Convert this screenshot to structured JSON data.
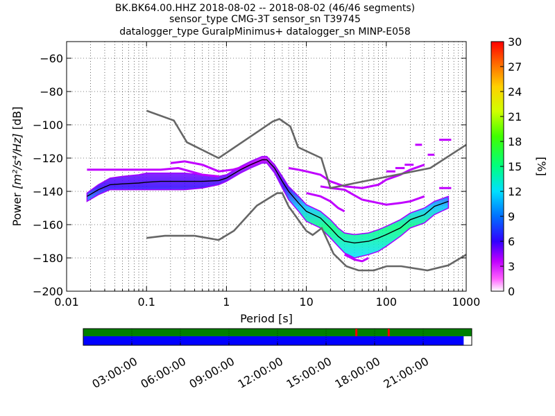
{
  "title_lines": [
    "BK.BK64.00.HHZ   2018-08-02 -- 2018-08-02  (46/46 segments)",
    "sensor_type CMG-3T sensor_sn T39745",
    "datalogger_type GuralpMinimus+ datalogger_sn MINP-E058"
  ],
  "chart_data": [
    {
      "type": "heatmap",
      "title": "BK.BK64.00.HHZ   2018-08-02 -- 2018-08-02  (46/46 segments)",
      "xlabel": "Period [s]",
      "ylabel": "Power [m²/s⁴/Hz] [dB]",
      "ylabel_prefix": "Power ",
      "ylabel_units": "[m²/s⁴/Hz]",
      "ylabel_suffix": " [dB]",
      "xscale": "log",
      "xlim": [
        0.01,
        1000
      ],
      "ylim": [
        -200,
        -50
      ],
      "xtick_values": [
        0.01,
        0.1,
        1,
        10,
        100,
        1000
      ],
      "xtick_labels": [
        "0.01",
        "0.1",
        "1",
        "10",
        "100",
        "1000"
      ],
      "ytick_values": [
        -200,
        -180,
        -160,
        -140,
        -120,
        -100,
        -80,
        -60
      ],
      "ytick_labels": [
        "−200",
        "−180",
        "−160",
        "−140",
        "−120",
        "−100",
        "−80",
        "−60"
      ],
      "grid": "dotted",
      "colorbar": {
        "label": "[%]",
        "range": [
          0,
          30
        ],
        "tick_values": [
          0,
          3,
          6,
          9,
          12,
          15,
          18,
          21,
          24,
          27,
          30
        ],
        "tick_labels": [
          "0",
          "3",
          "6",
          "9",
          "12",
          "15",
          "18",
          "21",
          "24",
          "27",
          "30"
        ]
      },
      "model_curves": [
        {
          "name": "high noise model",
          "color": "#666666",
          "x": [
            0.1,
            0.22,
            0.32,
            0.8,
            3.8,
            4.6,
            6.3,
            7.9,
            15.4,
            20,
            354.8,
            1000
          ],
          "y": [
            -91.5,
            -97.4,
            -110.5,
            -120,
            -98,
            -96.5,
            -101,
            -113.5,
            -120,
            -138,
            -126,
            -112
          ]
        },
        {
          "name": "low noise model",
          "color": "#666666",
          "x": [
            0.1,
            0.17,
            0.4,
            0.8,
            1.24,
            2.4,
            4.3,
            5,
            6,
            10,
            12,
            15.6,
            21.9,
            31.6,
            45,
            70,
            101,
            154,
            328,
            600,
            1000
          ],
          "y": [
            -168,
            -166.7,
            -166.7,
            -169.2,
            -163.7,
            -148.6,
            -141.1,
            -141.1,
            -149,
            -163.8,
            -166.2,
            -162.1,
            -177.5,
            -185,
            -187.5,
            -187.5,
            -185,
            -185,
            -187.5,
            -184.4,
            -178
          ]
        }
      ],
      "mean_curve": {
        "color": "#000000",
        "x": [
          0.018,
          0.025,
          0.035,
          0.05,
          0.08,
          0.1,
          0.15,
          0.2,
          0.3,
          0.5,
          0.8,
          1,
          1.5,
          2,
          2.8,
          3.2,
          4,
          5,
          6,
          8,
          10,
          15,
          20,
          25,
          30,
          40,
          60,
          80,
          100,
          150,
          200,
          300,
          400,
          600
        ],
        "y": [
          -143,
          -139,
          -136,
          -135.5,
          -135,
          -134.5,
          -134,
          -134,
          -134,
          -134,
          -133.5,
          -132,
          -127,
          -124,
          -121,
          -121,
          -126,
          -134,
          -140,
          -147,
          -152,
          -156,
          -162,
          -167,
          -170,
          -171,
          -170,
          -168,
          -166,
          -162,
          -157,
          -154,
          -149,
          -146
        ]
      },
      "density_band": {
        "x": [
          0.018,
          0.025,
          0.035,
          0.05,
          0.08,
          0.1,
          0.15,
          0.2,
          0.3,
          0.5,
          0.8,
          1,
          1.5,
          2,
          2.8,
          3.2,
          4,
          5,
          6,
          8,
          10,
          15,
          20,
          25,
          30,
          40,
          60,
          80,
          100,
          150,
          200,
          300,
          400,
          600
        ],
        "low": [
          -146,
          -142,
          -139,
          -139,
          -139,
          -139,
          -139,
          -139,
          -139,
          -138,
          -136,
          -134,
          -129,
          -126,
          -123,
          -123,
          -129,
          -138,
          -145,
          -152,
          -158,
          -162,
          -168,
          -173,
          -177,
          -180,
          -178,
          -176,
          -173,
          -167,
          -162,
          -159,
          -154,
          -150
        ],
        "high": [
          -141,
          -136,
          -132,
          -131,
          -130,
          -129,
          -129,
          -129,
          -129,
          -130,
          -131,
          -130,
          -125,
          -122,
          -119,
          -119,
          -124,
          -131,
          -137,
          -143,
          -148,
          -152,
          -157,
          -162,
          -165,
          -166,
          -165,
          -163,
          -161,
          -157,
          -153,
          -150,
          -146,
          -143
        ]
      },
      "outlier_segments": [
        {
          "x": [
            0.018,
            0.08,
            0.15,
            0.25,
            0.5,
            0.8
          ],
          "y": [
            -127,
            -127,
            -127,
            -126,
            -130,
            -131
          ]
        },
        {
          "x": [
            0.2,
            0.3,
            0.5,
            0.8,
            1.2,
            2,
            3
          ],
          "y": [
            -123,
            -122,
            -124,
            -128,
            -127,
            -124,
            -121
          ]
        },
        {
          "x": [
            6,
            8,
            10,
            15,
            20,
            30,
            50,
            80,
            100,
            150,
            200,
            300
          ],
          "y": [
            -126,
            -127,
            -128,
            -130,
            -134,
            -137,
            -138,
            -136,
            -133,
            -130,
            -127,
            -124
          ]
        },
        {
          "x": [
            15,
            20,
            30,
            50,
            80,
            100,
            150,
            200,
            300
          ],
          "y": [
            -137,
            -138,
            -139,
            -145,
            -147,
            -148,
            -147,
            -146,
            -143
          ]
        },
        {
          "x": [
            10,
            15,
            20,
            25,
            30
          ],
          "y": [
            -141,
            -143,
            -146,
            -150,
            -152
          ]
        },
        {
          "x": [
            100,
            130
          ],
          "y": [
            -128,
            -128
          ]
        },
        {
          "x": [
            130,
            170
          ],
          "y": [
            -126,
            -126
          ]
        },
        {
          "x": [
            170,
            220
          ],
          "y": [
            -124,
            -124
          ]
        },
        {
          "x": [
            230,
            280
          ],
          "y": [
            -112,
            -112
          ]
        },
        {
          "x": [
            460,
            650
          ],
          "y": [
            -138,
            -138
          ]
        },
        {
          "x": [
            330,
            400
          ],
          "y": [
            -118,
            -118
          ]
        },
        {
          "x": [
            460,
            650
          ],
          "y": [
            -109,
            -109
          ]
        },
        {
          "x": [
            30,
            40,
            50,
            60
          ],
          "y": [
            -178,
            -181,
            -182,
            -180
          ]
        }
      ]
    },
    {
      "type": "timeline",
      "tick_labels": [
        "03:00:00",
        "06:00:00",
        "09:00:00",
        "12:00:00",
        "15:00:00",
        "18:00:00",
        "21:00:00"
      ],
      "tick_hours": [
        3,
        6,
        9,
        12,
        15,
        18,
        21
      ],
      "range_hours": [
        0,
        24
      ],
      "coverage_color": "#008000",
      "gap_color": "#ff0000",
      "gaps_hours": [
        16.85,
        18.85
      ],
      "segments_color": "#0000ff",
      "segments_end_hours": [
        23.5
      ]
    }
  ]
}
